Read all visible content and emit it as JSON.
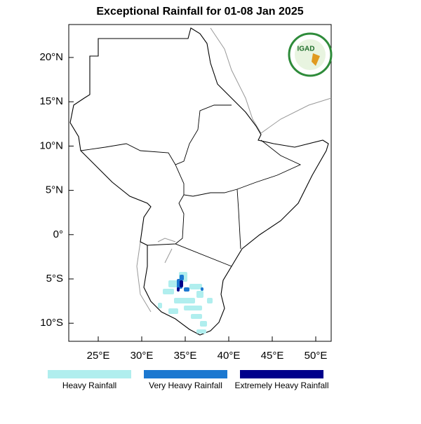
{
  "map": {
    "title": "Exceptional Rainfall for 01-08 Jan 2025",
    "lon_labels": [
      "25°E",
      "30°E",
      "35°E",
      "40°E",
      "45°E",
      "50°E"
    ],
    "lat_labels": [
      "20°N",
      "15°N",
      "10°N",
      "5°N",
      "0°",
      "5°S",
      "10°S"
    ],
    "legend": [
      {
        "label": "Heavy Rainfall",
        "color": "#b0eeee"
      },
      {
        "label": "Very Heavy Rainfall",
        "color": "#1c78d0"
      },
      {
        "label": "Extremely Heavy Rainfall",
        "color": "#00008b"
      }
    ],
    "logo": "IGAD"
  }
}
